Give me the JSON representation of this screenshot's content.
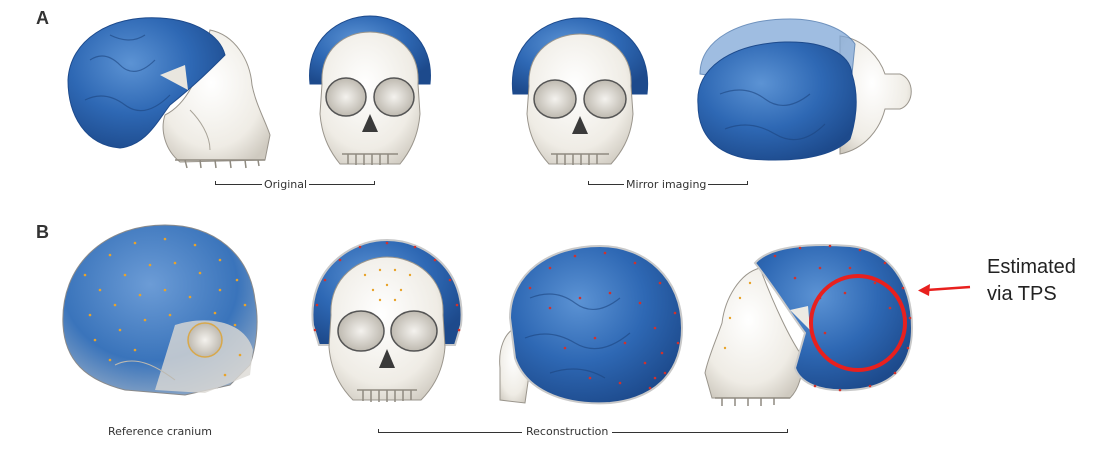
{
  "panel_a": {
    "letter": "A",
    "caption_original": "Original",
    "caption_mirror": "Mirror imaging"
  },
  "panel_b": {
    "letter": "B",
    "caption_reference": "Reference cranium",
    "caption_reconstruction": "Reconstruction"
  },
  "annotation": {
    "line1": "Estimated",
    "line2": "via TPS",
    "arrow_color": "#e8201e",
    "circle_color": "#e8201e"
  },
  "colors": {
    "vault_blue": "#2e68b4",
    "bone": "#f1eee7",
    "landmark_orange": "#e8a32a",
    "landmark_red": "#d2312c"
  }
}
